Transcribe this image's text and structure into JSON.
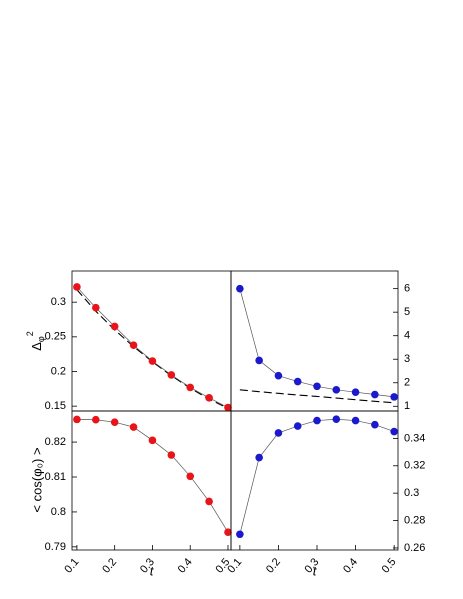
{
  "chart_data": [
    {
      "type": "line",
      "ylabel": "Δ",
      "ylabel_sub": "φ",
      "ylabel_sup": "2",
      "yaxis_side": "left",
      "x": [
        0.1,
        0.15,
        0.2,
        0.25,
        0.3,
        0.35,
        0.4,
        0.45,
        0.5
      ],
      "xlim": [
        0.087,
        0.508
      ],
      "ylim": [
        0.143,
        0.345
      ],
      "yticks": [
        0.15,
        0.2,
        0.25,
        0.3
      ],
      "series": [
        {
          "color": "#000000",
          "dashed": true,
          "markers": false,
          "values": [
            0.318,
            0.287,
            0.26,
            0.236,
            0.214,
            0.194,
            0.176,
            0.16,
            0.147
          ]
        },
        {
          "color": "#e8141a",
          "dashed": false,
          "markers": true,
          "values": [
            0.322,
            0.292,
            0.265,
            0.238,
            0.215,
            0.195,
            0.177,
            0.162,
            0.148
          ]
        }
      ]
    },
    {
      "type": "line",
      "yaxis_side": "right",
      "x": [
        0.1,
        0.15,
        0.2,
        0.25,
        0.3,
        0.35,
        0.4,
        0.45,
        0.5
      ],
      "xlim": [
        0.077,
        0.51
      ],
      "ylim": [
        0.8,
        6.75
      ],
      "yticks": [
        1,
        2,
        3,
        4,
        5,
        6
      ],
      "series": [
        {
          "color": "#000000",
          "dashed": true,
          "markers": false,
          "values": [
            1.7,
            1.62,
            1.55,
            1.48,
            1.42,
            1.35,
            1.28,
            1.21,
            1.15
          ]
        },
        {
          "color": "#1a1acc",
          "dashed": false,
          "markers": true,
          "values": [
            6.0,
            2.95,
            2.3,
            2.05,
            1.85,
            1.7,
            1.6,
            1.5,
            1.4
          ]
        }
      ]
    },
    {
      "type": "line",
      "ylabel": "< cos(φ₀) >",
      "xlabel": "t",
      "yaxis_side": "left",
      "x": [
        0.1,
        0.15,
        0.2,
        0.25,
        0.3,
        0.35,
        0.4,
        0.45,
        0.5
      ],
      "xlim": [
        0.087,
        0.508
      ],
      "xticks": [
        0.1,
        0.2,
        0.3,
        0.4,
        0.5
      ],
      "ylim": [
        0.7891,
        0.8289
      ],
      "yticks": [
        0.79,
        0.8,
        0.81,
        0.82
      ],
      "series": [
        {
          "color": "#e8141a",
          "dashed": false,
          "markers": true,
          "values": [
            0.8265,
            0.8264,
            0.8257,
            0.8243,
            0.8205,
            0.8163,
            0.8102,
            0.803,
            0.7942
          ]
        }
      ]
    },
    {
      "type": "line",
      "xlabel": "t",
      "yaxis_side": "right",
      "x": [
        0.1,
        0.15,
        0.2,
        0.25,
        0.3,
        0.35,
        0.4,
        0.45,
        0.5
      ],
      "xlim": [
        0.077,
        0.51
      ],
      "xticks": [
        0.1,
        0.2,
        0.3,
        0.4,
        0.5
      ],
      "ylim": [
        0.2585,
        0.36
      ],
      "yticks": [
        0.26,
        0.28,
        0.3,
        0.32,
        0.34
      ],
      "series": [
        {
          "color": "#1a1acc",
          "dashed": false,
          "markers": true,
          "values": [
            0.27,
            0.326,
            0.344,
            0.349,
            0.353,
            0.354,
            0.353,
            0.35,
            0.345
          ]
        }
      ]
    }
  ]
}
